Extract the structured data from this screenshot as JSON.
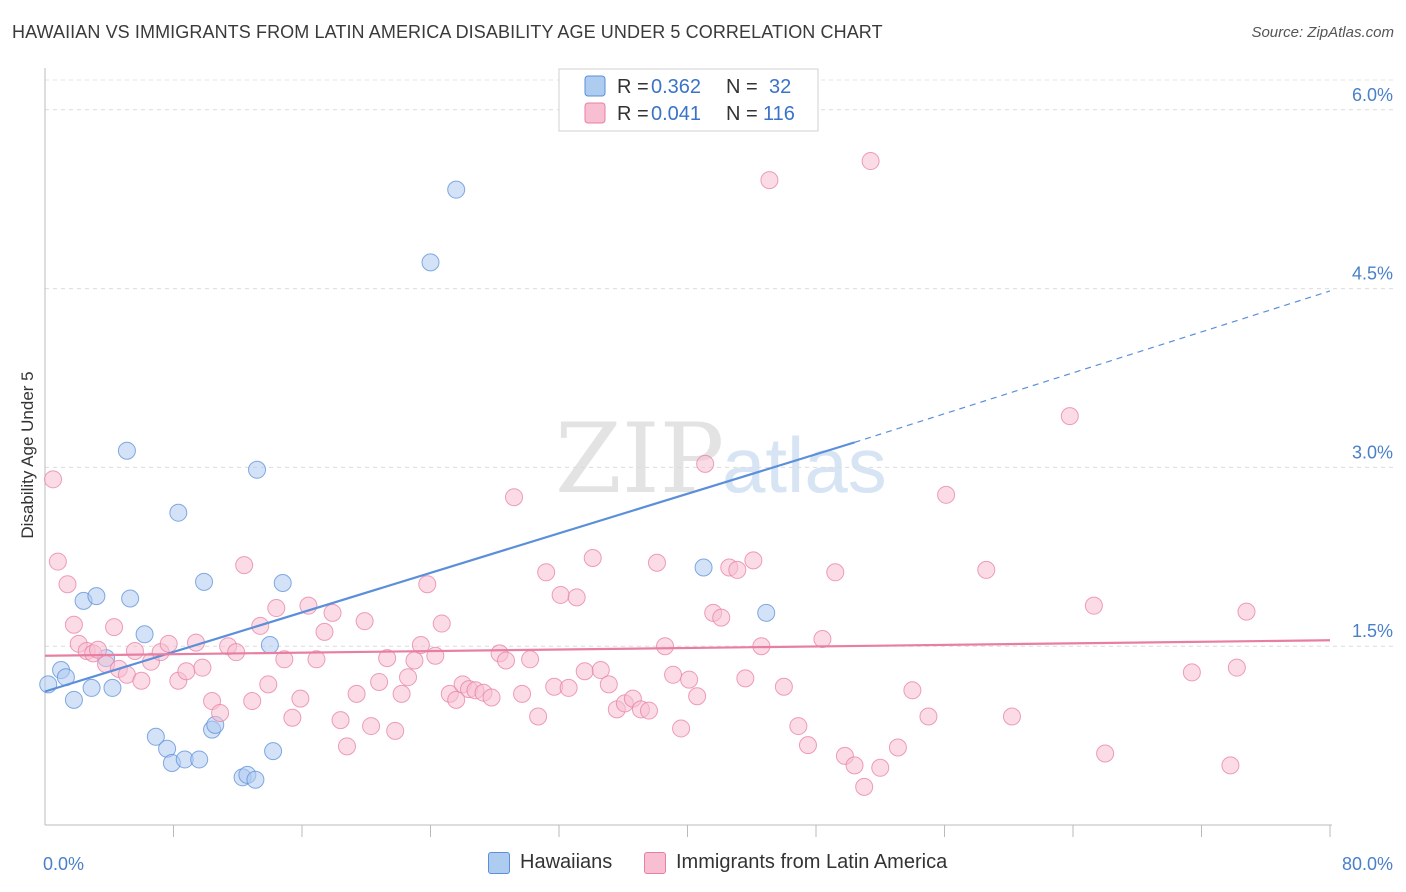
{
  "title": "HAWAIIAN VS IMMIGRANTS FROM LATIN AMERICA DISABILITY AGE UNDER 5 CORRELATION CHART",
  "source": "Source: ZipAtlas.com",
  "watermark": {
    "zip": "ZIP",
    "atlas": "atlas"
  },
  "legend": {
    "r_label": "R =",
    "n_label": "N =",
    "rows": [
      {
        "r": "0.362",
        "n": "32",
        "color": "#5b8fd9"
      },
      {
        "r": "0.041",
        "n": "116",
        "color": "#e87fa3"
      }
    ]
  },
  "bottom_legend": [
    {
      "label": "Hawaiians",
      "color": "#aecbf0"
    },
    {
      "label": "Immigrants from Latin America",
      "color": "#f7bfd1"
    }
  ],
  "chart_data": {
    "type": "scatter",
    "title": "HAWAIIAN VS IMMIGRANTS FROM LATIN AMERICA DISABILITY AGE UNDER 5 CORRELATION CHART",
    "xlabel": "",
    "ylabel": "Disability Age Under 5",
    "xlim": [
      0,
      80
    ],
    "ylim": [
      0,
      6.25
    ],
    "x_tick_labels": [
      "0.0%",
      "80.0%"
    ],
    "y_ticks": [
      1.5,
      3.0,
      4.5,
      6.0
    ],
    "y_tick_labels": [
      "1.5%",
      "3.0%",
      "4.5%",
      "6.0%"
    ],
    "grid": "horizontal dashed",
    "legend_position": "top-center",
    "series": [
      {
        "name": "Hawaiians",
        "color": "#5b8fd9",
        "fill": "#aecbf0",
        "trend": {
          "x0": 0,
          "y0": 1.12,
          "x1": 50.4,
          "y1": 3.21,
          "dashed_to_x": 80,
          "dashed_to_y": 4.48
        },
        "points": [
          [
            0.2,
            1.18
          ],
          [
            1.0,
            1.3
          ],
          [
            1.3,
            1.24
          ],
          [
            1.8,
            1.05
          ],
          [
            2.4,
            1.88
          ],
          [
            2.9,
            1.15
          ],
          [
            3.2,
            1.92
          ],
          [
            3.8,
            1.4
          ],
          [
            4.2,
            1.15
          ],
          [
            5.1,
            3.14
          ],
          [
            5.3,
            1.9
          ],
          [
            6.2,
            1.6
          ],
          [
            6.9,
            0.74
          ],
          [
            7.6,
            0.64
          ],
          [
            7.9,
            0.52
          ],
          [
            8.3,
            2.62
          ],
          [
            8.7,
            0.55
          ],
          [
            9.6,
            0.55
          ],
          [
            9.9,
            2.04
          ],
          [
            10.4,
            0.8
          ],
          [
            10.6,
            0.84
          ],
          [
            12.3,
            0.4
          ],
          [
            12.6,
            0.42
          ],
          [
            13.1,
            0.38
          ],
          [
            13.2,
            2.98
          ],
          [
            14.0,
            1.51
          ],
          [
            14.2,
            0.62
          ],
          [
            14.8,
            2.03
          ],
          [
            24.0,
            4.72
          ],
          [
            25.6,
            5.33
          ],
          [
            41.0,
            2.16
          ],
          [
            44.9,
            1.78
          ]
        ]
      },
      {
        "name": "Immigrants from Latin America",
        "color": "#e87fa3",
        "fill": "#f7bfd1",
        "trend": {
          "x0": 0,
          "y0": 1.42,
          "x1": 80,
          "y1": 1.55
        },
        "points": [
          [
            0.5,
            2.9
          ],
          [
            0.8,
            2.21
          ],
          [
            1.4,
            2.02
          ],
          [
            1.8,
            1.68
          ],
          [
            2.1,
            1.52
          ],
          [
            2.6,
            1.46
          ],
          [
            3.0,
            1.44
          ],
          [
            3.3,
            1.47
          ],
          [
            3.8,
            1.35
          ],
          [
            4.3,
            1.66
          ],
          [
            4.6,
            1.31
          ],
          [
            5.1,
            1.26
          ],
          [
            5.6,
            1.46
          ],
          [
            6.0,
            1.21
          ],
          [
            6.6,
            1.37
          ],
          [
            7.2,
            1.45
          ],
          [
            7.7,
            1.52
          ],
          [
            8.3,
            1.21
          ],
          [
            8.8,
            1.29
          ],
          [
            9.4,
            1.53
          ],
          [
            9.8,
            1.32
          ],
          [
            10.4,
            1.04
          ],
          [
            10.9,
            0.94
          ],
          [
            11.4,
            1.5
          ],
          [
            11.9,
            1.45
          ],
          [
            12.4,
            2.18
          ],
          [
            12.9,
            1.04
          ],
          [
            13.4,
            1.67
          ],
          [
            13.9,
            1.18
          ],
          [
            14.4,
            1.82
          ],
          [
            14.9,
            1.39
          ],
          [
            15.4,
            0.9
          ],
          [
            15.9,
            1.06
          ],
          [
            16.4,
            1.84
          ],
          [
            16.9,
            1.39
          ],
          [
            17.4,
            1.62
          ],
          [
            17.9,
            1.78
          ],
          [
            18.4,
            0.88
          ],
          [
            18.8,
            0.66
          ],
          [
            19.4,
            1.1
          ],
          [
            19.9,
            1.71
          ],
          [
            20.3,
            0.83
          ],
          [
            20.8,
            1.2
          ],
          [
            21.3,
            1.4
          ],
          [
            21.8,
            0.79
          ],
          [
            22.2,
            1.1
          ],
          [
            22.6,
            1.24
          ],
          [
            23.0,
            1.38
          ],
          [
            23.4,
            1.51
          ],
          [
            23.8,
            2.02
          ],
          [
            24.3,
            1.42
          ],
          [
            24.7,
            1.69
          ],
          [
            25.2,
            1.1
          ],
          [
            25.6,
            1.05
          ],
          [
            26.0,
            1.18
          ],
          [
            26.4,
            1.14
          ],
          [
            26.8,
            1.13
          ],
          [
            27.3,
            1.11
          ],
          [
            27.8,
            1.07
          ],
          [
            28.3,
            1.44
          ],
          [
            28.7,
            1.38
          ],
          [
            29.2,
            2.75
          ],
          [
            29.7,
            1.1
          ],
          [
            30.2,
            1.39
          ],
          [
            30.7,
            0.91
          ],
          [
            31.2,
            2.12
          ],
          [
            31.7,
            1.16
          ],
          [
            32.1,
            1.93
          ],
          [
            32.6,
            1.15
          ],
          [
            33.1,
            1.91
          ],
          [
            33.6,
            1.29
          ],
          [
            34.1,
            2.24
          ],
          [
            34.6,
            1.3
          ],
          [
            35.1,
            1.18
          ],
          [
            35.6,
            0.97
          ],
          [
            36.1,
            1.02
          ],
          [
            36.6,
            1.06
          ],
          [
            37.1,
            0.97
          ],
          [
            37.6,
            0.96
          ],
          [
            38.1,
            2.2
          ],
          [
            38.6,
            1.5
          ],
          [
            39.1,
            1.26
          ],
          [
            39.6,
            0.81
          ],
          [
            40.1,
            1.22
          ],
          [
            40.6,
            1.08
          ],
          [
            41.1,
            3.03
          ],
          [
            41.6,
            1.78
          ],
          [
            42.1,
            1.74
          ],
          [
            42.6,
            2.16
          ],
          [
            43.1,
            2.14
          ],
          [
            43.6,
            1.23
          ],
          [
            44.1,
            2.22
          ],
          [
            44.6,
            1.5
          ],
          [
            45.1,
            5.41
          ],
          [
            46.0,
            1.16
          ],
          [
            46.9,
            0.83
          ],
          [
            47.5,
            0.67
          ],
          [
            48.4,
            1.56
          ],
          [
            49.2,
            2.12
          ],
          [
            49.8,
            0.58
          ],
          [
            50.4,
            0.5
          ],
          [
            51.0,
            0.32
          ],
          [
            51.4,
            5.57
          ],
          [
            52.0,
            0.48
          ],
          [
            53.1,
            0.65
          ],
          [
            54.0,
            1.13
          ],
          [
            55.0,
            0.91
          ],
          [
            56.1,
            2.77
          ],
          [
            58.6,
            2.14
          ],
          [
            60.2,
            0.91
          ],
          [
            63.8,
            3.43
          ],
          [
            65.3,
            1.84
          ],
          [
            66.0,
            0.6
          ],
          [
            71.4,
            1.28
          ],
          [
            73.8,
            0.5
          ],
          [
            74.2,
            1.32
          ],
          [
            74.8,
            1.79
          ]
        ]
      }
    ]
  }
}
